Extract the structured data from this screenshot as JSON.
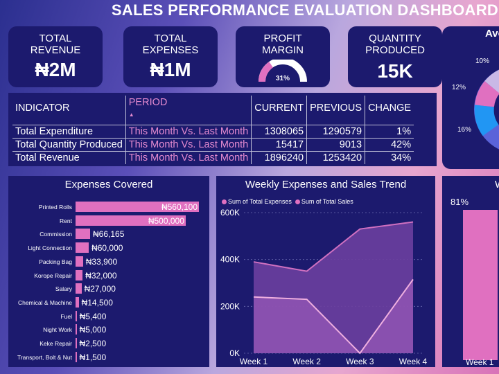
{
  "title": "SALES PERFORMANCE EVALUATION DASHBOARD",
  "kpis": [
    {
      "label": "TOTAL REVENUE",
      "value": "₦2M"
    },
    {
      "label": "TOTAL EXPENSES",
      "value": "₦1M"
    },
    {
      "label": "PROFIT MARGIN",
      "value": "31%",
      "fraction": 0.31
    },
    {
      "label": "QUANTITY PRODUCED",
      "value": "15K"
    }
  ],
  "table": {
    "headers": [
      "INDICATOR",
      "PERIOD",
      "CURRENT",
      "PREVIOUS",
      "CHANGE"
    ],
    "rows": [
      [
        "Total Expenditure",
        "This Month Vs. Last Month",
        "1308065",
        "1290579",
        "1%"
      ],
      [
        "Total Quantity Produced",
        "This Month Vs. Last Month",
        "15417",
        "9013",
        "42%"
      ],
      [
        "Total Revenue",
        "This Month Vs. Last Month",
        "1896240",
        "1253420",
        "34%"
      ]
    ]
  },
  "donut": {
    "title": "Ave",
    "labels": [
      "10%",
      "12%",
      "16%"
    ]
  },
  "week_panel": {
    "title": "W",
    "value_label": "81%",
    "axis_label": "Week 1"
  },
  "colors": {
    "accent": "#e070c0",
    "panel": "#1c1a6e"
  },
  "chart_data": [
    {
      "type": "bar",
      "title": "Expenses Covered",
      "orientation": "horizontal",
      "categories": [
        "Printed Rolls",
        "Rent",
        "Commission",
        "Light Connection",
        "Packing Bag",
        "Korope Repair",
        "Salary",
        "Chemical & Machine",
        "Fuel",
        "Night Work",
        "Keke Repair",
        "Transport, Bolt & Nut"
      ],
      "values": [
        560100,
        500000,
        66165,
        60000,
        33900,
        32000,
        27000,
        14500,
        5400,
        5000,
        2500,
        1500
      ],
      "value_labels": [
        "₦560,100",
        "₦500,000",
        "₦66,165",
        "₦60,000",
        "₦33,900",
        "₦32,000",
        "₦27,000",
        "₦14,500",
        "₦5,400",
        "₦5,000",
        "₦2,500",
        "₦1,500"
      ]
    },
    {
      "type": "area",
      "title": "Weekly Expenses and Sales Trend",
      "categories": [
        "Week 1",
        "Week 2",
        "Week 3",
        "Week 4"
      ],
      "series": [
        {
          "name": "Sum of Total Expenses",
          "values": [
            240000,
            230000,
            0,
            315000
          ]
        },
        {
          "name": "Sum of Total Sales",
          "values": [
            390000,
            350000,
            530000,
            560000
          ]
        }
      ],
      "ylim": [
        0,
        600000
      ],
      "yticks": [
        "0K",
        "200K",
        "400K",
        "600K"
      ],
      "legend": "top-left"
    }
  ]
}
